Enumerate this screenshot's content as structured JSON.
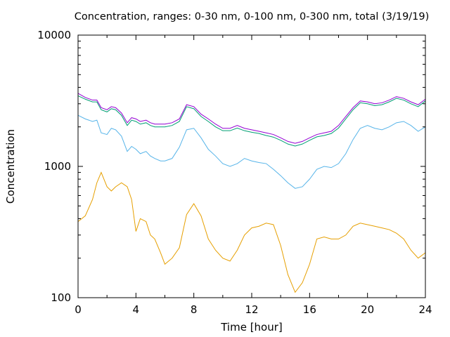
{
  "chart_data": {
    "type": "line",
    "title": "Concentration, ranges: 0-30 nm, 0-100 nm, 0-300 nm, total (3/19/19)",
    "xlabel": "Time [hour]",
    "ylabel": "Concentration",
    "xlim": [
      0,
      24
    ],
    "ylim": [
      100,
      10000
    ],
    "y_scale": "log",
    "grid": false,
    "legend": "none",
    "x_ticks": [
      0,
      4,
      8,
      12,
      16,
      20,
      24
    ],
    "x_tick_labels": [
      "0",
      "4",
      "8",
      "12",
      "16",
      "20",
      "24"
    ],
    "y_ticks": [
      100,
      1000,
      10000
    ],
    "y_tick_labels": [
      "100",
      "1000",
      "10000"
    ],
    "x": [
      0,
      0.5,
      1,
      1.3,
      1.6,
      2,
      2.3,
      2.6,
      3,
      3.4,
      3.7,
      4,
      4.3,
      4.7,
      5,
      5.3,
      5.7,
      6,
      6.5,
      7,
      7.5,
      8,
      8.5,
      9,
      9.5,
      10,
      10.5,
      11,
      11.5,
      12,
      12.5,
      13,
      13.5,
      14,
      14.5,
      15,
      15.5,
      16,
      16.5,
      17,
      17.5,
      18,
      18.5,
      19,
      19.5,
      20,
      20.5,
      21,
      21.5,
      22,
      22.5,
      23,
      23.5,
      24
    ],
    "series": [
      {
        "color": "#9400d3",
        "values": [
          3600,
          3350,
          3200,
          3200,
          2800,
          2700,
          2850,
          2800,
          2550,
          2150,
          2350,
          2300,
          2200,
          2250,
          2150,
          2100,
          2100,
          2100,
          2150,
          2300,
          2950,
          2850,
          2500,
          2300,
          2100,
          1950,
          1950,
          2050,
          1950,
          1900,
          1850,
          1800,
          1750,
          1650,
          1550,
          1500,
          1550,
          1650,
          1750,
          1800,
          1850,
          2050,
          2400,
          2800,
          3150,
          3100,
          3000,
          3050,
          3200,
          3400,
          3300,
          3100,
          2950,
          3250
        ]
      },
      {
        "color": "#009e73",
        "values": [
          3450,
          3250,
          3100,
          3100,
          2700,
          2600,
          2750,
          2700,
          2450,
          2050,
          2250,
          2200,
          2100,
          2150,
          2050,
          2000,
          2000,
          2000,
          2050,
          2200,
          2850,
          2750,
          2400,
          2200,
          2000,
          1870,
          1870,
          1960,
          1870,
          1820,
          1780,
          1720,
          1670,
          1580,
          1480,
          1430,
          1480,
          1580,
          1680,
          1720,
          1780,
          1960,
          2300,
          2700,
          3050,
          3000,
          2900,
          2950,
          3100,
          3300,
          3200,
          3000,
          2850,
          3150
        ]
      },
      {
        "color": "#56b4e9",
        "values": [
          2450,
          2300,
          2200,
          2250,
          1800,
          1750,
          1950,
          1900,
          1700,
          1300,
          1420,
          1350,
          1250,
          1300,
          1200,
          1150,
          1100,
          1100,
          1150,
          1400,
          1900,
          1950,
          1650,
          1350,
          1200,
          1050,
          1000,
          1050,
          1150,
          1100,
          1070,
          1050,
          950,
          850,
          750,
          680,
          700,
          800,
          950,
          1000,
          980,
          1050,
          1250,
          1600,
          1950,
          2050,
          1950,
          1900,
          2000,
          2150,
          2200,
          2050,
          1850,
          2000
        ]
      },
      {
        "color": "#e69f00",
        "values": [
          380,
          420,
          560,
          750,
          900,
          700,
          650,
          700,
          750,
          700,
          560,
          320,
          400,
          380,
          300,
          280,
          220,
          180,
          200,
          240,
          430,
          520,
          420,
          280,
          230,
          200,
          190,
          230,
          300,
          340,
          350,
          370,
          360,
          250,
          150,
          110,
          130,
          180,
          280,
          290,
          280,
          280,
          300,
          350,
          370,
          360,
          350,
          340,
          330,
          310,
          280,
          230,
          200,
          220
        ]
      }
    ]
  }
}
